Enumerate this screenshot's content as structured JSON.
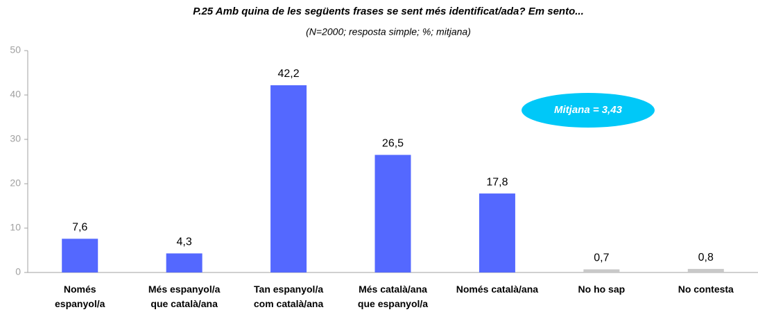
{
  "chart_data": {
    "type": "bar",
    "title": "P.25 Amb quina de les següents frases se sent més identificat/ada? Em sento...",
    "subtitle": "(N=2000; resposta simple; %; mitjana)",
    "categories": [
      [
        "Només",
        "espanyol/a"
      ],
      [
        "Més espanyol/a",
        "que català/ana"
      ],
      [
        "Tan espanyol/a",
        "com català/ana"
      ],
      [
        "Més català/ana",
        "que espanyol/a"
      ],
      [
        "Només català/ana"
      ],
      [
        "No ho sap"
      ],
      [
        "No contesta"
      ]
    ],
    "values": [
      7.6,
      4.3,
      42.2,
      26.5,
      17.8,
      0.7,
      0.8
    ],
    "value_labels": [
      "7,6",
      "4,3",
      "42,2",
      "26,5",
      "17,8",
      "0,7",
      "0,8"
    ],
    "colors": [
      "#5468ff",
      "#5468ff",
      "#5468ff",
      "#5468ff",
      "#5468ff",
      "#c8c8c8",
      "#c8c8c8"
    ],
    "ylim": [
      0,
      50
    ],
    "yticks": [
      0,
      10,
      20,
      30,
      40,
      50
    ],
    "annotation": "Mitjana = 3,43",
    "annotation_color": "#00c8f8"
  }
}
